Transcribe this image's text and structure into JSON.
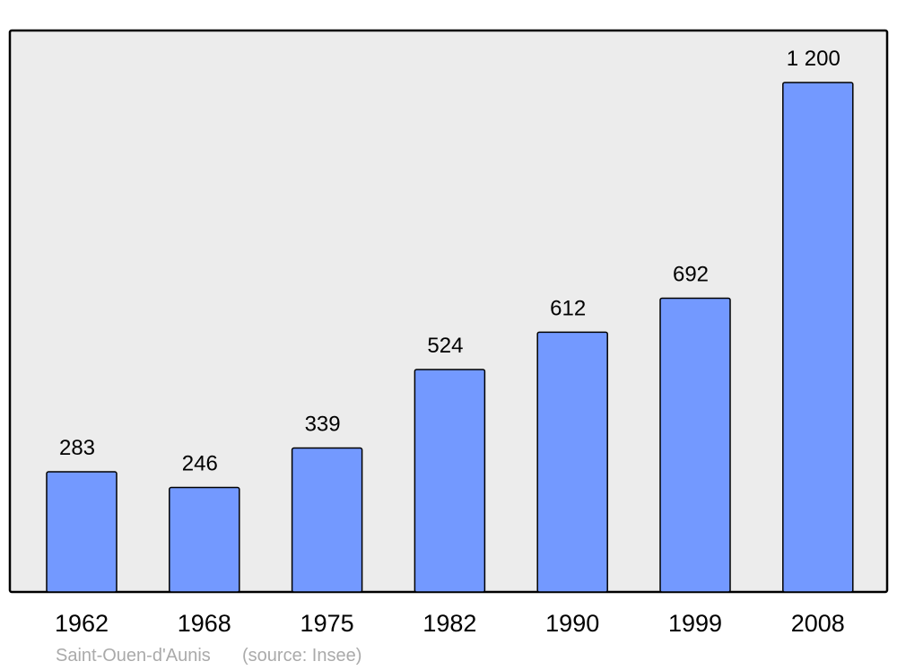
{
  "chart_data": {
    "type": "bar",
    "categories": [
      "1962",
      "1968",
      "1975",
      "1982",
      "1990",
      "1999",
      "2008"
    ],
    "values": [
      283,
      246,
      339,
      524,
      612,
      692,
      1200
    ],
    "value_labels": [
      "283",
      "246",
      "339",
      "524",
      "612",
      "692",
      "1 200"
    ],
    "color": "#7399ff",
    "footer": {
      "place": "Saint-Ouen-d'Aunis",
      "source": "(source: Insee)"
    }
  }
}
